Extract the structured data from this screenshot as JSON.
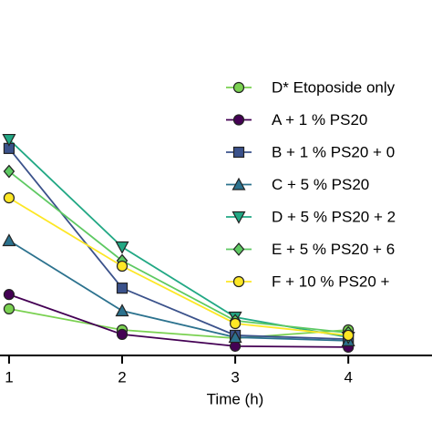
{
  "chart_data": {
    "type": "line",
    "x_label": "Time (h)",
    "x": [
      1,
      2,
      3,
      4
    ],
    "xlim": [
      0.92,
      4.74
    ],
    "xticks": [
      1,
      2,
      3,
      4
    ],
    "ylim": [
      0,
      100
    ],
    "series": [
      {
        "name": "D* Etoposide only",
        "color": "#7ad151",
        "marker": "circle",
        "values": [
          14.6,
          8,
          5.4,
          8
        ]
      },
      {
        "name": "A + 1 % PS20",
        "color": "#440154",
        "marker": "circle",
        "values": [
          19.1,
          6.6,
          2.9,
          2.6
        ]
      },
      {
        "name": "B + 1 % PS20 + 0",
        "color": "#3b528b",
        "marker": "square",
        "values": [
          64.9,
          21.1,
          6.3,
          5.1
        ]
      },
      {
        "name": "C + 5 % PS20",
        "color": "#2c728e",
        "marker": "triangle-up",
        "values": [
          36,
          14,
          5.7,
          4.6
        ]
      },
      {
        "name": "D + 5 % PS20 + 2",
        "color": "#22a884",
        "marker": "triangle-down",
        "values": [
          67.7,
          34,
          12,
          5.7
        ]
      },
      {
        "name": "E + 5 % PS20 + 6",
        "color": "#5ec962",
        "marker": "diamond",
        "values": [
          57.7,
          29.7,
          10.9,
          7.1
        ]
      },
      {
        "name": "F + 10 % PS20 +",
        "color": "#fde725",
        "marker": "circle",
        "values": [
          49.4,
          28,
          10,
          6.3
        ]
      }
    ]
  }
}
